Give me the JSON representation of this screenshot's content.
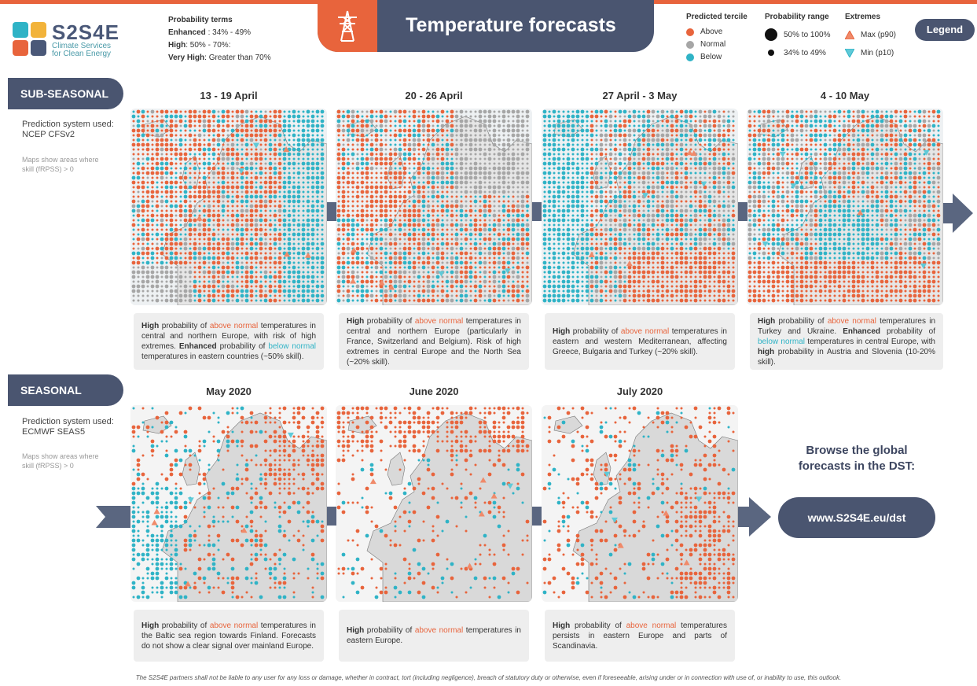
{
  "logo": {
    "name": "S2S4E",
    "subtitle_line1": "Climate Services",
    "subtitle_line2": "for Clean Energy"
  },
  "probability_terms": {
    "heading": "Probability terms",
    "enhanced_label": "Enhanced",
    "enhanced_value": " : 34% - 49%",
    "high_label": "High",
    "high_value": ": 50% - 70%:",
    "very_high_label": "Very High",
    "very_high_value": ": Greater than 70%"
  },
  "title": "Temperature forecasts",
  "legend": {
    "tercile_heading": "Predicted tercile",
    "above": "Above",
    "normal": "Normal",
    "below": "Below",
    "range_heading": "Probability range",
    "range_high": "50% to 100%",
    "range_low": "34% to 49%",
    "extremes_heading": "Extremes",
    "max": "Max (p90)",
    "min": "Min (p10)",
    "button": "Legend"
  },
  "colors": {
    "above": "#e8643c",
    "normal": "#a6a6a6",
    "below": "#2fb3c6",
    "accent_dark": "#4a5570"
  },
  "subseasonal": {
    "tab": "SUB-SEASONAL",
    "prediction_line1": "Prediction system used:",
    "prediction_line2": "NCEP CFSv2",
    "note_line1": "Maps show areas where",
    "note_line2": "skill (fRPSS) > 0",
    "panels": [
      {
        "title": "13 - 19 April"
      },
      {
        "title": "20 - 26 April"
      },
      {
        "title": "27 April - 3 May"
      },
      {
        "title": "4 - 10 May"
      }
    ]
  },
  "seasonal": {
    "tab": "SEASONAL",
    "prediction_line1": "Prediction system used:",
    "prediction_line2": "ECMWF SEAS5",
    "note_line1": "Maps show areas where",
    "note_line2": "skill (fRPSS) > 0",
    "panels": [
      {
        "title": "May 2020"
      },
      {
        "title": "June 2020"
      },
      {
        "title": "July 2020"
      }
    ]
  },
  "captions": {
    "c1": {
      "a": "High",
      "b": " probability of ",
      "c": "above normal",
      "d": " temperatures in central and northern Europe, with risk of high extremes. ",
      "e": "Enhanced",
      "f": " probability of ",
      "g": "below normal",
      "h": " temperatures in eastern countries (~50% skill)."
    },
    "c2": {
      "a": "High",
      "b": " probability of ",
      "c": "above normal",
      "d": " temperatures in central and northern Europe (particularly in France, Switzerland and Belgium). Risk of high extremes in central Europe and the North Sea (~20% skill)."
    },
    "c3": {
      "a": "High",
      "b": " probability of ",
      "c": "above normal",
      "d": " temperatures in eastern and western Mediterranean, affecting Greece, Bulgaria and Turkey (~20% skill)."
    },
    "c4": {
      "a": "High",
      "b": " probability of ",
      "c": "above normal",
      "d": " temperatures in Turkey and Ukraine. ",
      "e": "Enhanced",
      "f": " probability of ",
      "g": "below normal",
      "h": " temperatures in central Europe, with ",
      "i": "high",
      "j": " probability in Austria and Slovenia (10-20% skill)."
    },
    "c5": {
      "a": "High",
      "b": " probability of ",
      "c": "above normal",
      "d": " temperatures in the Baltic sea region towards Finland. Forecasts do not show a clear signal over mainland Europe."
    },
    "c6": {
      "a": "High",
      "b": " probability of ",
      "c": "above normal",
      "d": " temperatures in eastern Europe."
    },
    "c7": {
      "a": "High",
      "b": " probability of ",
      "c": "above normal",
      "d": " temperatures persists in eastern Europe and parts of Scandinavia."
    }
  },
  "browse": {
    "line1": "Browse the global",
    "line2": "forecasts in the DST:",
    "url": "www.S2S4E.eu/dst"
  },
  "disclaimer": "The S2S4E partners shall not be liable to any user for any loss or damage, whether in contract, tort (including negligence), breach of statutory duty or otherwise, even if foreseeable, arising under or in connection with use of, or inability to use, this outlook."
}
